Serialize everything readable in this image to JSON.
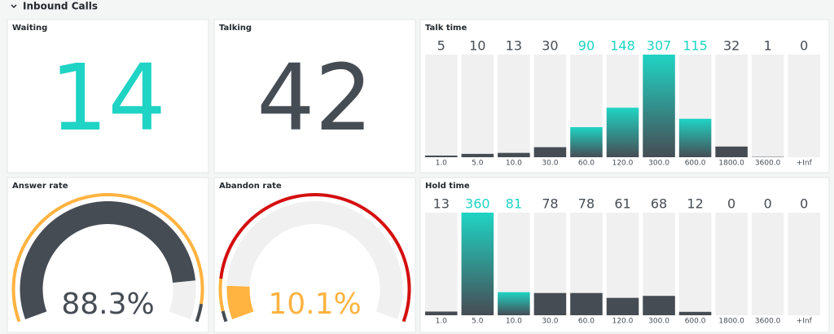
{
  "row_title": "Inbound Calls",
  "panels": [
    {
      "type": "stat",
      "title": "Waiting",
      "value": 14,
      "color": "#1fd4c4"
    },
    {
      "type": "stat",
      "title": "Talking",
      "value": 42,
      "color": "#464c54"
    },
    {
      "type": "bargauge",
      "title": "Talk time",
      "categories": [
        "1.0",
        "5.0",
        "10.0",
        "30.0",
        "60.0",
        "120.0",
        "300.0",
        "600.0",
        "1800.0",
        "3600.0",
        "+Inf"
      ],
      "values": [
        5,
        10,
        13,
        30,
        90,
        148,
        307,
        115,
        32,
        1,
        0
      ],
      "colors": [
        "#464c54",
        "#464c54",
        "#464c54",
        "#464c54",
        "#1fd4c4",
        "#1fd4c4",
        "#1fd4c4",
        "#1fd4c4",
        "#464c54",
        "#464c54",
        "#464c54"
      ],
      "ylim": [
        0,
        307
      ]
    },
    {
      "type": "gauge",
      "title": "Answer rate",
      "value": 88.3,
      "value_label": "88.3%",
      "color": "#464c54",
      "text_color": "#464c54",
      "ylim": [
        0,
        100
      ],
      "bands": [
        [
          0,
          95,
          "#ffb340"
        ],
        [
          95,
          100,
          "#464c54"
        ]
      ]
    },
    {
      "type": "gauge",
      "title": "Abandon rate",
      "value": 10.1,
      "value_label": "10.1%",
      "color": "#ffb340",
      "text_color": "#ffb340",
      "ylim": [
        0,
        100
      ],
      "bands": [
        [
          0,
          3,
          "#464c54"
        ],
        [
          3,
          12,
          "#ffb340"
        ],
        [
          12,
          100,
          "#d40f0f"
        ]
      ]
    },
    {
      "type": "bargauge",
      "title": "Hold time",
      "categories": [
        "1.0",
        "5.0",
        "10.0",
        "30.0",
        "60.0",
        "120.0",
        "300.0",
        "600.0",
        "1800.0",
        "3600.0",
        "+Inf"
      ],
      "values": [
        13,
        360,
        81,
        78,
        78,
        61,
        68,
        12,
        0,
        0,
        0
      ],
      "colors": [
        "#464c54",
        "#1fd4c4",
        "#1fd4c4",
        "#464c54",
        "#464c54",
        "#464c54",
        "#464c54",
        "#464c54",
        "#464c54",
        "#464c54",
        "#464c54"
      ],
      "ylim": [
        0,
        360
      ]
    }
  ]
}
